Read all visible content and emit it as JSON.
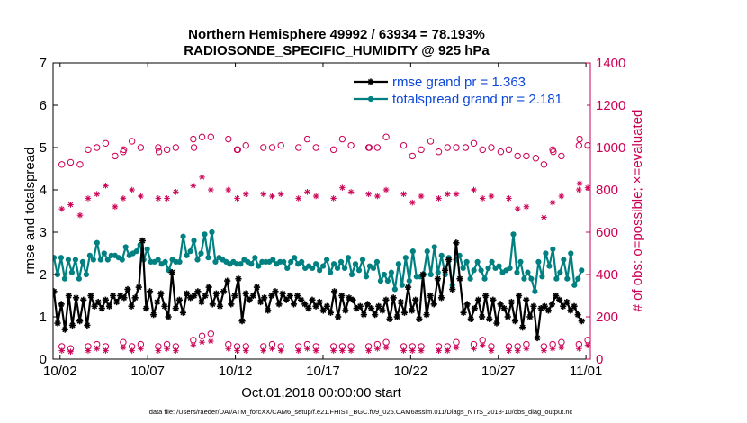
{
  "chart_data": {
    "type": "line",
    "title": "Northern Hemisphere 49992 / 63934 = 78.193%",
    "subtitle": "RADIOSONDE_SPECIFIC_HUMIDITY @ 925 hPa",
    "xlabel": "Oct.01,2018 00:00:00 start",
    "ylabel_left": "rmse and totalspread",
    "ylabel_right": "# of obs: o=possible; ×=evaluated",
    "footer": "data file: /Users/raeder/DAI/ATM_forcXX/CAM6_setup/f.e21.FHIST_BGC.f09_025.CAM6assim.011/Diags_NTrS_2018-10/obs_diag_output.nc",
    "xlim": [
      0.6,
      31.25
    ],
    "ylim_left": [
      0,
      7
    ],
    "ylim_right": [
      0,
      1400
    ],
    "x_ticks": [
      1,
      6,
      11,
      16,
      21,
      26,
      31
    ],
    "x_tick_labels": [
      "10/02",
      "10/07",
      "10/12",
      "10/17",
      "10/22",
      "10/27",
      "11/01"
    ],
    "y_ticks_left": [
      "0",
      "1",
      "2",
      "3",
      "4",
      "5",
      "6",
      "7"
    ],
    "y_ticks_right": [
      "0",
      "200",
      "400",
      "600",
      "800",
      "1000",
      "1200",
      "1400"
    ],
    "legend_position": "top-right",
    "colors": {
      "rmse": "#000000",
      "totalspread": "#008080",
      "obs": "#cc0055",
      "legend_text": "#0d47d9",
      "right_axis": "#cc0055"
    },
    "series": [
      {
        "name": "rmse grand pr = 1.363",
        "axis": "left",
        "values": [
          1.6,
          0.85,
          1.3,
          0.7,
          1.5,
          0.8,
          1.45,
          0.9,
          1.4,
          0.8,
          1.5,
          1.25,
          1.35,
          1.2,
          1.4,
          1.25,
          1.5,
          1.35,
          1.5,
          1.45,
          1.65,
          1.25,
          1.45,
          1.7,
          2.8,
          1.2,
          1.6,
          1.05,
          1.35,
          1.55,
          1.25,
          1.0,
          2.05,
          1.2,
          1.4,
          1.1,
          1.55,
          1.45,
          1.5,
          1.6,
          1.35,
          1.5,
          1.7,
          1.3,
          1.55,
          1.25,
          1.6,
          1.85,
          1.3,
          1.5,
          1.9,
          0.9,
          1.55,
          1.4,
          1.5,
          1.7,
          1.35,
          1.45,
          1.15,
          1.5,
          1.6,
          1.3,
          1.55,
          1.4,
          1.5,
          1.3,
          1.5,
          1.4,
          1.3,
          1.2,
          1.4,
          1.25,
          1.35,
          1.15,
          1.25,
          1.1,
          1.6,
          1.0,
          1.5,
          1.15,
          1.45,
          1.4,
          1.2,
          1.25,
          1.05,
          1.3,
          1.2,
          1.05,
          1.25,
          1.15,
          1.4,
          0.95,
          1.45,
          1.0,
          1.35,
          1.1,
          1.7,
          1.15,
          1.4,
          0.95,
          2.0,
          1.05,
          1.5,
          1.3,
          1.9,
          1.45,
          2.1,
          2.35,
          1.65,
          2.75,
          1.9,
          1.1,
          1.3,
          0.95,
          1.2,
          1.4,
          1.0,
          1.5,
          0.95,
          1.4,
          0.85,
          1.3,
          1.2,
          1.0,
          1.35,
          0.9,
          1.5,
          0.75,
          1.4,
          1.0,
          1.25,
          0.5,
          1.2,
          1.25,
          1.15,
          1.3,
          1.5,
          1.4,
          1.25,
          1.35,
          1.15,
          1.25,
          1.05,
          0.9
        ],
        "marker": "star"
      },
      {
        "name": "totalspread grand pr = 2.181",
        "axis": "left",
        "values": [
          2.4,
          2.0,
          2.4,
          1.9,
          2.35,
          2.05,
          2.35,
          1.9,
          2.3,
          2.0,
          2.45,
          2.35,
          2.75,
          2.35,
          2.5,
          2.35,
          2.45,
          2.45,
          2.4,
          2.35,
          2.65,
          2.45,
          2.5,
          2.55,
          2.7,
          2.35,
          2.6,
          2.3,
          2.3,
          2.35,
          2.25,
          2.3,
          2.1,
          2.35,
          2.3,
          2.3,
          2.9,
          2.45,
          2.55,
          2.8,
          2.35,
          2.5,
          2.95,
          2.4,
          3.0,
          2.3,
          2.4,
          2.35,
          2.3,
          2.25,
          2.3,
          2.25,
          2.25,
          2.35,
          2.3,
          2.25,
          2.4,
          2.2,
          2.3,
          2.3,
          2.3,
          2.35,
          2.25,
          2.3,
          2.3,
          2.15,
          2.3,
          2.4,
          2.25,
          2.3,
          2.15,
          2.2,
          2.15,
          2.25,
          2.1,
          2.2,
          2.35,
          2.05,
          2.25,
          2.15,
          2.3,
          2.15,
          2.4,
          2.0,
          2.25,
          2.1,
          2.35,
          1.95,
          2.2,
          2.15,
          2.3,
          1.85,
          2.0,
          1.85,
          2.05,
          1.65,
          2.25,
          1.75,
          2.4,
          1.85,
          2.55,
          1.95,
          1.95,
          2.0,
          2.55,
          2.0,
          2.65,
          2.05,
          2.45,
          2.0,
          2.4,
          1.75,
          2.35,
          2.45,
          2.15,
          2.3,
          1.9,
          2.1,
          2.3,
          2.1,
          1.9,
          2.15,
          2.3,
          2.15,
          2.2,
          2.05,
          2.1,
          2.15,
          2.95,
          2.05,
          2.3,
          1.9,
          2.05,
          1.9,
          1.6,
          2.3,
          1.95,
          2.5,
          2.2,
          2.6,
          1.9,
          2.05,
          2.35,
          1.9,
          2.5,
          1.75,
          1.9,
          2.1
        ],
        "marker": "circle"
      },
      {
        "name": "obs possible",
        "axis": "right",
        "marker": "open-circle",
        "x": [
          1.1,
          1.6,
          2.6,
          3.1,
          3.6,
          4.6,
          5.1,
          5.6,
          6.6,
          7.1,
          7.6,
          8.6,
          9.1,
          9.6,
          10.6,
          11.1,
          11.6,
          12.6,
          13.1,
          13.6,
          14.6,
          15.1,
          15.6,
          16.6,
          17.1,
          17.6,
          18.6,
          19.1,
          19.6,
          20.6,
          21.1,
          21.6,
          22.6,
          23.1,
          23.6,
          24.6,
          25.1,
          25.6,
          26.6,
          27.1,
          27.6,
          28.6,
          29.1,
          29.6,
          30.6,
          31.1
        ],
        "values": [
          920,
          930,
          990,
          1000,
          1020,
          980,
          1030,
          1000,
          1000,
          990,
          1000,
          1040,
          1050,
          1050,
          1040,
          990,
          1010,
          1000,
          1000,
          1010,
          1000,
          1040,
          1000,
          990,
          1040,
          1010,
          1000,
          1000,
          1050,
          1010,
          960,
          990,
          980,
          1000,
          1000,
          1020,
          990,
          1000,
          990,
          960,
          960,
          920,
          990,
          960,
          1010,
          1010
        ],
        "values_offset": [
          0,
          0,
          920,
          0,
          0,
          960,
          990,
          0,
          0,
          980,
          0,
          0,
          1000,
          0,
          0,
          0,
          990,
          0,
          0,
          0,
          0,
          0,
          0,
          0,
          0,
          0,
          0,
          1000,
          0,
          0,
          0,
          0,
          1030,
          0,
          0,
          1000,
          0,
          0,
          980,
          0,
          0,
          950,
          0,
          980,
          0,
          1040
        ]
      },
      {
        "name": "obs evaluated",
        "axis": "right",
        "marker": "asterisk",
        "x": [
          1.1,
          1.6,
          2.6,
          3.1,
          3.6,
          4.6,
          5.1,
          5.6,
          6.6,
          7.1,
          7.6,
          8.6,
          9.1,
          9.6,
          10.6,
          11.1,
          11.6,
          12.6,
          13.1,
          13.6,
          14.6,
          15.1,
          15.6,
          16.6,
          17.1,
          17.6,
          18.6,
          19.1,
          19.6,
          20.6,
          21.1,
          21.6,
          22.6,
          23.1,
          23.6,
          24.6,
          25.1,
          25.6,
          26.6,
          27.1,
          27.6,
          28.6,
          29.1,
          29.6,
          30.6,
          31.1
        ],
        "values": [
          710,
          730,
          760,
          780,
          820,
          760,
          800,
          770,
          760,
          760,
          790,
          820,
          860,
          800,
          800,
          760,
          780,
          780,
          770,
          780,
          760,
          790,
          770,
          760,
          810,
          790,
          780,
          770,
          800,
          780,
          740,
          770,
          760,
          780,
          780,
          800,
          760,
          770,
          760,
          710,
          720,
          670,
          740,
          770,
          800,
          810
        ],
        "values_offset": [
          0,
          0,
          680,
          0,
          0,
          720,
          0,
          0,
          0,
          0,
          0,
          0,
          0,
          0,
          0,
          0,
          0,
          0,
          0,
          0,
          0,
          0,
          0,
          0,
          0,
          0,
          0,
          0,
          0,
          0,
          0,
          0,
          0,
          0,
          0,
          0,
          0,
          0,
          0,
          0,
          0,
          0,
          0,
          0,
          0,
          830
        ]
      },
      {
        "name": "obs possible (low)",
        "axis": "right",
        "marker": "open-circle",
        "x": [
          1.1,
          1.6,
          2.6,
          3.1,
          3.6,
          4.6,
          5.1,
          5.6,
          6.6,
          7.1,
          7.6,
          8.6,
          9.1,
          9.6,
          10.6,
          11.1,
          11.6,
          12.6,
          13.1,
          13.6,
          14.6,
          15.1,
          15.6,
          16.6,
          17.1,
          17.6,
          18.6,
          19.1,
          19.6,
          20.6,
          21.1,
          21.6,
          22.6,
          23.1,
          23.6,
          24.6,
          25.1,
          25.6,
          26.6,
          27.1,
          27.6,
          28.6,
          29.1,
          29.6,
          30.6,
          31.1
        ],
        "values": [
          60,
          50,
          60,
          70,
          60,
          80,
          60,
          70,
          60,
          70,
          60,
          90,
          110,
          120,
          70,
          60,
          60,
          60,
          70,
          60,
          60,
          70,
          60,
          60,
          60,
          60,
          60,
          70,
          80,
          60,
          60,
          60,
          60,
          60,
          80,
          70,
          90,
          60,
          60,
          60,
          70,
          60,
          70,
          80,
          70,
          90
        ],
        "values_offset": [
          0,
          0,
          0,
          0,
          0,
          0,
          0,
          0,
          0,
          0,
          0,
          0,
          0,
          0,
          0,
          0,
          0,
          0,
          0,
          0,
          0,
          0,
          0,
          0,
          0,
          0,
          0,
          0,
          0,
          0,
          0,
          0,
          0,
          0,
          0,
          0,
          0,
          0,
          0,
          0,
          0,
          0,
          0,
          0,
          0,
          0
        ]
      },
      {
        "name": "obs evaluated (low)",
        "axis": "right",
        "marker": "asterisk",
        "x": [
          1.1,
          1.6,
          2.6,
          3.1,
          3.6,
          4.6,
          5.1,
          5.6,
          6.6,
          7.1,
          7.6,
          8.6,
          9.1,
          9.6,
          10.6,
          11.1,
          11.6,
          12.6,
          13.1,
          13.6,
          14.6,
          15.1,
          15.6,
          16.6,
          17.1,
          17.6,
          18.6,
          19.1,
          19.6,
          20.6,
          21.1,
          21.6,
          22.6,
          23.1,
          23.6,
          24.6,
          25.1,
          25.6,
          26.6,
          27.1,
          27.6,
          28.6,
          29.1,
          29.6,
          30.6,
          31.1
        ],
        "values": [
          40,
          35,
          40,
          50,
          40,
          55,
          40,
          50,
          40,
          50,
          40,
          65,
          80,
          85,
          50,
          40,
          40,
          40,
          50,
          40,
          40,
          50,
          40,
          40,
          40,
          40,
          40,
          50,
          55,
          40,
          40,
          40,
          40,
          40,
          55,
          50,
          65,
          40,
          40,
          40,
          50,
          40,
          50,
          55,
          50,
          65
        ],
        "values_offset": [
          0,
          0,
          0,
          0,
          0,
          0,
          0,
          0,
          0,
          0,
          0,
          0,
          0,
          0,
          0,
          0,
          0,
          0,
          0,
          0,
          0,
          0,
          0,
          0,
          0,
          0,
          0,
          0,
          0,
          0,
          0,
          0,
          0,
          0,
          0,
          0,
          0,
          0,
          0,
          0,
          0,
          0,
          0,
          0,
          0,
          0
        ]
      }
    ]
  }
}
